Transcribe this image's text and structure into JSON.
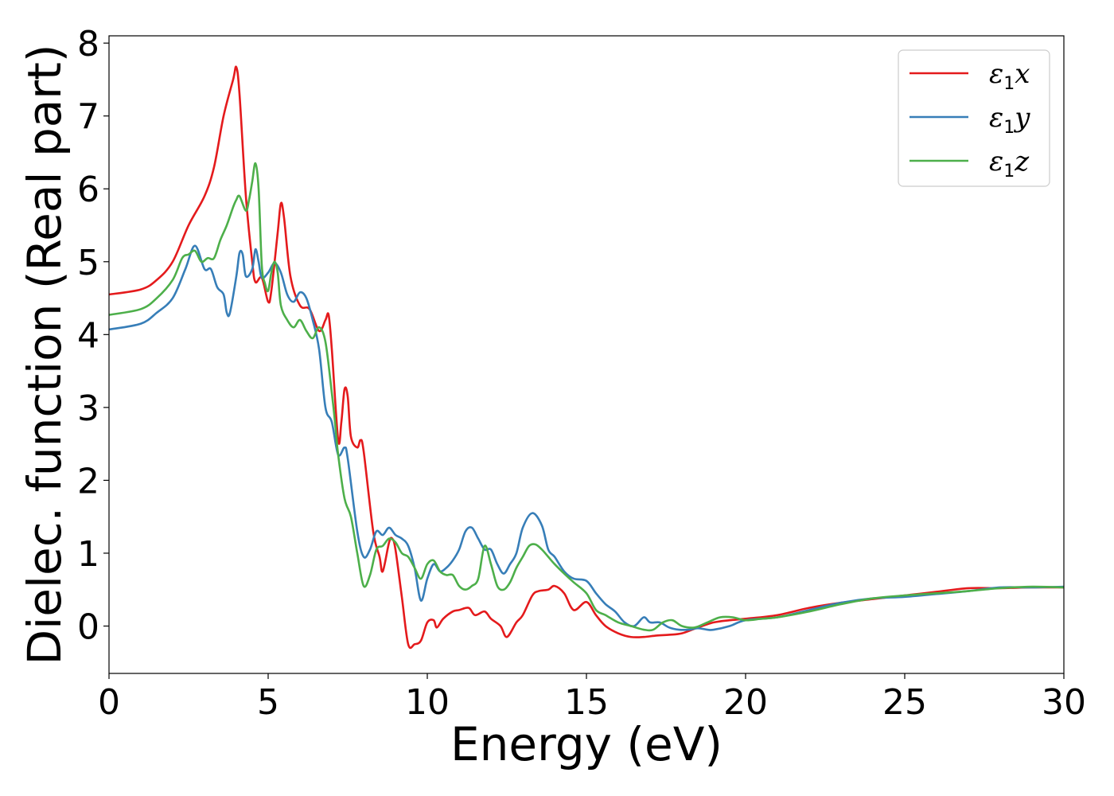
{
  "chart_data": {
    "type": "line",
    "xlabel": "Energy (eV)",
    "ylabel": "Dielec. function (Real part)",
    "xlim": [
      0,
      30
    ],
    "ylim": [
      -0.65,
      8.1
    ],
    "xticks": [
      0,
      5,
      10,
      15,
      20,
      25,
      30
    ],
    "yticks": [
      0,
      1,
      2,
      3,
      4,
      5,
      6,
      7,
      8
    ],
    "grid": false,
    "legend_position": "top-right",
    "series": [
      {
        "name": "ε1x",
        "legend": {
          "base": "ε",
          "sub": "1",
          "suffix": "x"
        },
        "color": "#e41a1c",
        "points": [
          [
            0,
            4.55
          ],
          [
            1,
            4.62
          ],
          [
            1.5,
            4.75
          ],
          [
            2,
            5.0
          ],
          [
            2.5,
            5.5
          ],
          [
            3,
            5.9
          ],
          [
            3.3,
            6.3
          ],
          [
            3.6,
            7.0
          ],
          [
            3.9,
            7.5
          ],
          [
            4.0,
            7.67
          ],
          [
            4.1,
            7.3
          ],
          [
            4.3,
            5.9
          ],
          [
            4.5,
            5.0
          ],
          [
            4.6,
            4.72
          ],
          [
            4.8,
            4.78
          ],
          [
            5.0,
            4.45
          ],
          [
            5.1,
            4.6
          ],
          [
            5.3,
            5.4
          ],
          [
            5.4,
            5.8
          ],
          [
            5.5,
            5.6
          ],
          [
            5.7,
            4.8
          ],
          [
            6.0,
            4.4
          ],
          [
            6.3,
            4.35
          ],
          [
            6.6,
            4.05
          ],
          [
            6.8,
            4.2
          ],
          [
            6.9,
            4.27
          ],
          [
            7.0,
            3.8
          ],
          [
            7.2,
            2.55
          ],
          [
            7.3,
            2.8
          ],
          [
            7.4,
            3.25
          ],
          [
            7.5,
            3.15
          ],
          [
            7.6,
            2.6
          ],
          [
            7.8,
            2.45
          ],
          [
            7.9,
            2.55
          ],
          [
            8.0,
            2.4
          ],
          [
            8.3,
            1.3
          ],
          [
            8.5,
            0.95
          ],
          [
            8.6,
            0.75
          ],
          [
            8.8,
            1.15
          ],
          [
            8.9,
            1.2
          ],
          [
            9.0,
            1.05
          ],
          [
            9.2,
            0.4
          ],
          [
            9.4,
            -0.25
          ],
          [
            9.6,
            -0.25
          ],
          [
            9.8,
            -0.2
          ],
          [
            10.0,
            0.05
          ],
          [
            10.2,
            0.08
          ],
          [
            10.3,
            -0.02
          ],
          [
            10.5,
            0.1
          ],
          [
            10.8,
            0.2
          ],
          [
            11.0,
            0.22
          ],
          [
            11.3,
            0.25
          ],
          [
            11.5,
            0.15
          ],
          [
            11.8,
            0.2
          ],
          [
            12.0,
            0.1
          ],
          [
            12.3,
            0.0
          ],
          [
            12.5,
            -0.15
          ],
          [
            12.8,
            0.05
          ],
          [
            13.0,
            0.15
          ],
          [
            13.3,
            0.42
          ],
          [
            13.5,
            0.48
          ],
          [
            13.8,
            0.5
          ],
          [
            14.0,
            0.55
          ],
          [
            14.3,
            0.45
          ],
          [
            14.6,
            0.22
          ],
          [
            15.0,
            0.33
          ],
          [
            15.3,
            0.15
          ],
          [
            15.6,
            0.0
          ],
          [
            16.0,
            -0.1
          ],
          [
            16.4,
            -0.15
          ],
          [
            16.8,
            -0.15
          ],
          [
            17.2,
            -0.13
          ],
          [
            17.6,
            -0.12
          ],
          [
            18.0,
            -0.1
          ],
          [
            18.5,
            -0.02
          ],
          [
            19.0,
            0.05
          ],
          [
            19.5,
            0.08
          ],
          [
            20.0,
            0.1
          ],
          [
            21.0,
            0.15
          ],
          [
            22.0,
            0.25
          ],
          [
            23.0,
            0.32
          ],
          [
            24.0,
            0.37
          ],
          [
            25.0,
            0.42
          ],
          [
            26.0,
            0.47
          ],
          [
            27.0,
            0.52
          ],
          [
            28.0,
            0.52
          ],
          [
            29.0,
            0.53
          ],
          [
            30.0,
            0.53
          ]
        ]
      },
      {
        "name": "ε1y",
        "legend": {
          "base": "ε",
          "sub": "1",
          "suffix": "y"
        },
        "color": "#377eb8",
        "points": [
          [
            0,
            4.07
          ],
          [
            1,
            4.15
          ],
          [
            1.5,
            4.3
          ],
          [
            2,
            4.5
          ],
          [
            2.4,
            4.9
          ],
          [
            2.7,
            5.22
          ],
          [
            3.0,
            4.9
          ],
          [
            3.2,
            4.9
          ],
          [
            3.4,
            4.65
          ],
          [
            3.6,
            4.55
          ],
          [
            3.7,
            4.3
          ],
          [
            3.8,
            4.3
          ],
          [
            4.0,
            4.8
          ],
          [
            4.1,
            5.12
          ],
          [
            4.2,
            5.1
          ],
          [
            4.3,
            4.8
          ],
          [
            4.5,
            4.9
          ],
          [
            4.6,
            5.17
          ],
          [
            4.7,
            5.0
          ],
          [
            4.8,
            4.78
          ],
          [
            5.0,
            4.85
          ],
          [
            5.2,
            4.98
          ],
          [
            5.4,
            4.85
          ],
          [
            5.6,
            4.55
          ],
          [
            5.8,
            4.45
          ],
          [
            6.0,
            4.58
          ],
          [
            6.2,
            4.5
          ],
          [
            6.4,
            4.2
          ],
          [
            6.6,
            3.8
          ],
          [
            6.8,
            3.0
          ],
          [
            7.0,
            2.8
          ],
          [
            7.2,
            2.35
          ],
          [
            7.4,
            2.45
          ],
          [
            7.5,
            2.3
          ],
          [
            7.8,
            1.3
          ],
          [
            8.0,
            0.95
          ],
          [
            8.2,
            1.05
          ],
          [
            8.4,
            1.3
          ],
          [
            8.6,
            1.25
          ],
          [
            8.8,
            1.35
          ],
          [
            9.0,
            1.25
          ],
          [
            9.2,
            1.2
          ],
          [
            9.4,
            1.1
          ],
          [
            9.6,
            0.8
          ],
          [
            9.8,
            0.35
          ],
          [
            10.0,
            0.65
          ],
          [
            10.2,
            0.85
          ],
          [
            10.4,
            0.75
          ],
          [
            10.6,
            0.8
          ],
          [
            10.8,
            0.9
          ],
          [
            11.0,
            1.05
          ],
          [
            11.2,
            1.3
          ],
          [
            11.4,
            1.35
          ],
          [
            11.6,
            1.2
          ],
          [
            11.8,
            1.05
          ],
          [
            12.0,
            1.05
          ],
          [
            12.2,
            0.85
          ],
          [
            12.4,
            0.72
          ],
          [
            12.6,
            0.85
          ],
          [
            12.8,
            1.0
          ],
          [
            13.0,
            1.35
          ],
          [
            13.3,
            1.55
          ],
          [
            13.6,
            1.38
          ],
          [
            13.8,
            1.05
          ],
          [
            14.0,
            0.95
          ],
          [
            14.3,
            0.75
          ],
          [
            14.6,
            0.65
          ],
          [
            15.0,
            0.62
          ],
          [
            15.3,
            0.45
          ],
          [
            15.6,
            0.3
          ],
          [
            15.9,
            0.2
          ],
          [
            16.2,
            0.05
          ],
          [
            16.5,
            0.0
          ],
          [
            16.8,
            0.12
          ],
          [
            17.0,
            0.05
          ],
          [
            17.3,
            0.05
          ],
          [
            17.6,
            -0.02
          ],
          [
            17.9,
            -0.05
          ],
          [
            18.2,
            -0.05
          ],
          [
            18.5,
            -0.03
          ],
          [
            18.8,
            -0.05
          ],
          [
            19.0,
            -0.05
          ],
          [
            19.5,
            0.0
          ],
          [
            20.0,
            0.08
          ],
          [
            21.0,
            0.12
          ],
          [
            22.0,
            0.22
          ],
          [
            23.0,
            0.32
          ],
          [
            24.0,
            0.38
          ],
          [
            25.0,
            0.4
          ],
          [
            26.0,
            0.44
          ],
          [
            27.0,
            0.48
          ],
          [
            28.0,
            0.53
          ],
          [
            29.0,
            0.53
          ],
          [
            30.0,
            0.54
          ]
        ]
      },
      {
        "name": "ε1z",
        "legend": {
          "base": "ε",
          "sub": "1",
          "suffix": "z"
        },
        "color": "#4daf4a",
        "points": [
          [
            0,
            4.27
          ],
          [
            1,
            4.35
          ],
          [
            1.5,
            4.5
          ],
          [
            2,
            4.75
          ],
          [
            2.3,
            5.05
          ],
          [
            2.5,
            5.1
          ],
          [
            2.7,
            5.15
          ],
          [
            2.9,
            5.0
          ],
          [
            3.1,
            5.05
          ],
          [
            3.3,
            5.05
          ],
          [
            3.5,
            5.3
          ],
          [
            3.7,
            5.5
          ],
          [
            3.9,
            5.75
          ],
          [
            4.0,
            5.85
          ],
          [
            4.1,
            5.9
          ],
          [
            4.3,
            5.7
          ],
          [
            4.4,
            5.85
          ],
          [
            4.5,
            6.1
          ],
          [
            4.6,
            6.35
          ],
          [
            4.7,
            6.0
          ],
          [
            4.8,
            4.95
          ],
          [
            4.9,
            4.7
          ],
          [
            5.0,
            4.6
          ],
          [
            5.1,
            4.85
          ],
          [
            5.2,
            5.0
          ],
          [
            5.3,
            4.85
          ],
          [
            5.4,
            4.4
          ],
          [
            5.6,
            4.2
          ],
          [
            5.8,
            4.1
          ],
          [
            6.0,
            4.2
          ],
          [
            6.2,
            4.05
          ],
          [
            6.4,
            3.95
          ],
          [
            6.6,
            4.1
          ],
          [
            6.8,
            3.9
          ],
          [
            7.0,
            3.2
          ],
          [
            7.1,
            2.8
          ],
          [
            7.2,
            2.35
          ],
          [
            7.4,
            1.75
          ],
          [
            7.6,
            1.5
          ],
          [
            7.8,
            1.0
          ],
          [
            8.0,
            0.55
          ],
          [
            8.2,
            0.7
          ],
          [
            8.4,
            1.05
          ],
          [
            8.6,
            1.1
          ],
          [
            8.8,
            1.2
          ],
          [
            9.0,
            1.15
          ],
          [
            9.2,
            1.0
          ],
          [
            9.4,
            0.95
          ],
          [
            9.6,
            0.8
          ],
          [
            9.8,
            0.65
          ],
          [
            10.0,
            0.85
          ],
          [
            10.2,
            0.9
          ],
          [
            10.4,
            0.75
          ],
          [
            10.6,
            0.7
          ],
          [
            10.8,
            0.7
          ],
          [
            11.0,
            0.55
          ],
          [
            11.2,
            0.5
          ],
          [
            11.4,
            0.55
          ],
          [
            11.6,
            0.65
          ],
          [
            11.8,
            1.1
          ],
          [
            12.0,
            0.85
          ],
          [
            12.2,
            0.55
          ],
          [
            12.4,
            0.5
          ],
          [
            12.6,
            0.6
          ],
          [
            12.8,
            0.8
          ],
          [
            13.0,
            0.95
          ],
          [
            13.2,
            1.1
          ],
          [
            13.4,
            1.12
          ],
          [
            13.6,
            1.05
          ],
          [
            13.8,
            0.95
          ],
          [
            14.0,
            0.85
          ],
          [
            14.3,
            0.72
          ],
          [
            14.6,
            0.6
          ],
          [
            15.0,
            0.45
          ],
          [
            15.3,
            0.22
          ],
          [
            15.6,
            0.15
          ],
          [
            16.0,
            0.05
          ],
          [
            16.4,
            0.0
          ],
          [
            16.8,
            -0.05
          ],
          [
            17.1,
            -0.05
          ],
          [
            17.4,
            0.05
          ],
          [
            17.7,
            0.08
          ],
          [
            18.0,
            0.0
          ],
          [
            18.4,
            -0.02
          ],
          [
            18.8,
            0.05
          ],
          [
            19.2,
            0.12
          ],
          [
            19.6,
            0.12
          ],
          [
            20.0,
            0.08
          ],
          [
            20.5,
            0.1
          ],
          [
            21.0,
            0.12
          ],
          [
            22.0,
            0.2
          ],
          [
            23.0,
            0.3
          ],
          [
            24.0,
            0.38
          ],
          [
            25.0,
            0.42
          ],
          [
            26.0,
            0.45
          ],
          [
            27.0,
            0.48
          ],
          [
            28.0,
            0.52
          ],
          [
            29.0,
            0.54
          ],
          [
            30.0,
            0.53
          ]
        ]
      }
    ]
  }
}
